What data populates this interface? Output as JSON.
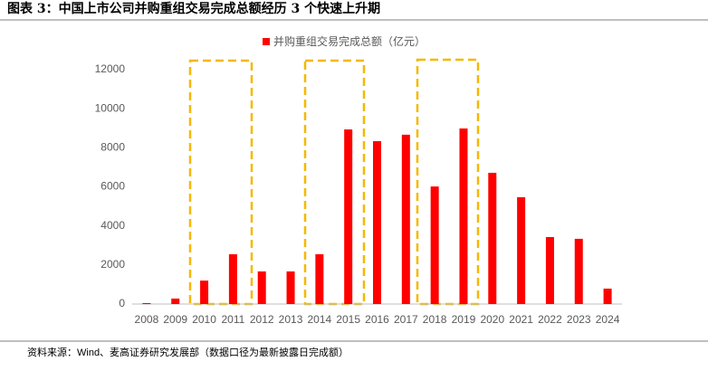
{
  "chart_data": {
    "type": "bar",
    "title": "图表 3：中国上市公司并购重组交易完成总额经历 3 个快速上升期",
    "source": "资料来源：Wind、麦高证券研究发展部（数据口径为最新披露日完成额）",
    "categories": [
      "2008",
      "2009",
      "2010",
      "2011",
      "2012",
      "2013",
      "2014",
      "2015",
      "2016",
      "2017",
      "2018",
      "2019",
      "2020",
      "2021",
      "2022",
      "2023",
      "2024"
    ],
    "series": [
      {
        "name": "并购重组交易完成总额（亿元）",
        "color": "#ff0000",
        "values": [
          50,
          280,
          1200,
          2550,
          1670,
          1670,
          2550,
          8940,
          8340,
          8670,
          6020,
          8990,
          6720,
          5470,
          3430,
          3340,
          790
        ]
      }
    ],
    "ylim": [
      0,
      12000
    ],
    "yticks": [
      0,
      2000,
      4000,
      6000,
      8000,
      10000,
      12000
    ]
  }
}
